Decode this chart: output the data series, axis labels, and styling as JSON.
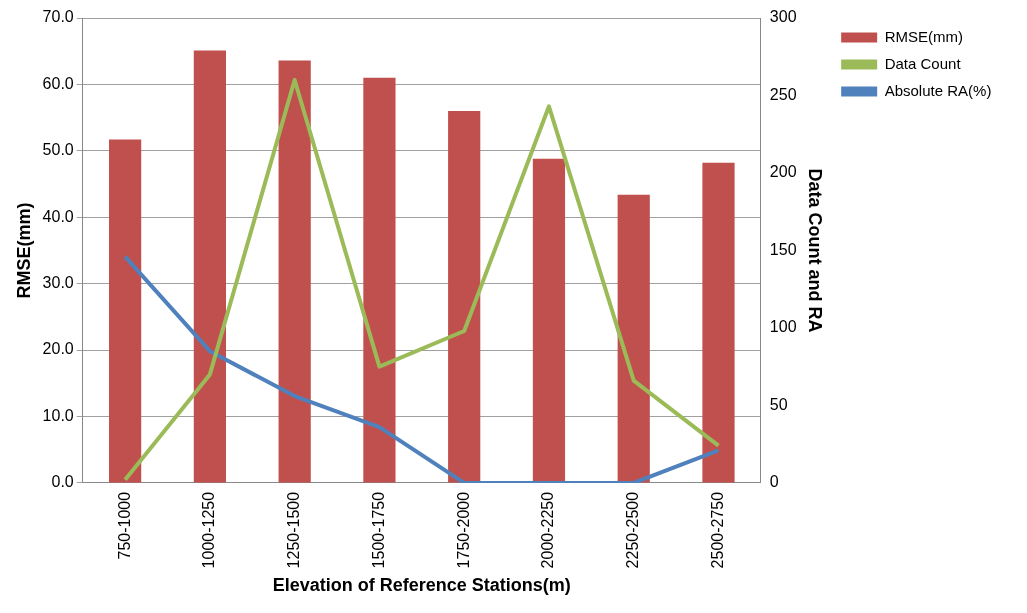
{
  "chart_data": {
    "type": "bar",
    "xlabel": "Elevation of Reference Stations(m)",
    "ylabel": "RMSE(mm)",
    "y2label": "Data Count and RA",
    "categories": [
      "750-1000",
      "1000-1250",
      "1250-1500",
      "1500-1750",
      "1750-2000",
      "2000-2250",
      "2250-2500",
      "2500-2750"
    ],
    "series": [
      {
        "name": "RMSE(mm)",
        "color": "#c0504d",
        "values": [
          51.7,
          65.1,
          63.6,
          61.0,
          56.0,
          48.8,
          43.4,
          48.2
        ]
      },
      {
        "name": "Data Count",
        "type": "line",
        "axis": "y2",
        "color": "#9bbb59",
        "values": [
          2,
          70,
          260,
          75,
          98,
          243,
          66,
          24
        ]
      },
      {
        "name": "Absolute RA(%)",
        "type": "line",
        "axis": "y2",
        "color": "#4f81bd",
        "values": [
          146,
          85,
          56,
          36,
          0,
          0,
          0,
          21
        ]
      }
    ],
    "ylim": [
      0,
      70
    ],
    "yticks": [
      {
        "value": 0,
        "label": "0.0"
      },
      {
        "value": 10,
        "label": "10.0"
      },
      {
        "value": 20,
        "label": "20.0"
      },
      {
        "value": 30,
        "label": "30.0"
      },
      {
        "value": 40,
        "label": "40.0"
      },
      {
        "value": 50,
        "label": "50.0"
      },
      {
        "value": 60,
        "label": "60.0"
      },
      {
        "value": 70,
        "label": "70.0"
      }
    ],
    "y2lim": [
      0,
      300
    ],
    "y2ticks": [
      0,
      50,
      100,
      150,
      200,
      250,
      300
    ],
    "grid": "y",
    "legend": "right",
    "marker": "none"
  }
}
